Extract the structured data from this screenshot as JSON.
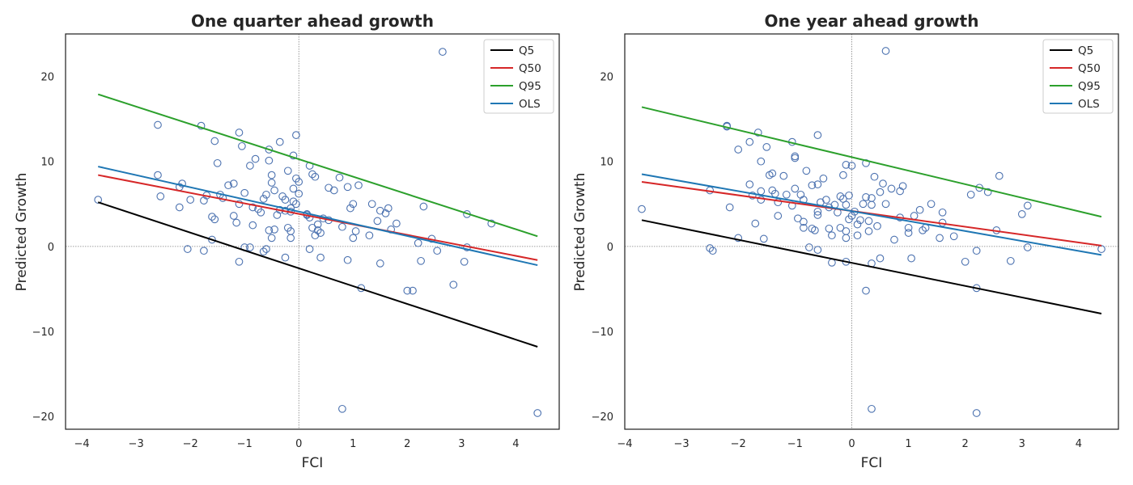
{
  "figure": {
    "colors": {
      "Q5": "#000000",
      "Q50": "#d62728",
      "Q95": "#2ca02c",
      "OLS": "#1f77b4",
      "points": "#4c72b0",
      "frame": "#262626",
      "refline": "#808080"
    }
  },
  "chart_data": [
    {
      "type": "scatter",
      "title": "One quarter ahead growth",
      "xlabel": "FCI",
      "ylabel": "Predicted Growth",
      "xlim": [
        -4.3,
        4.8
      ],
      "ylim": [
        -21.5,
        25
      ],
      "xticks": [
        -4,
        -3,
        -2,
        -1,
        0,
        1,
        2,
        3,
        4
      ],
      "xtick_labels": [
        "−4",
        "−3",
        "−2",
        "−1",
        "0",
        "1",
        "2",
        "3",
        "4"
      ],
      "yticks": [
        -20,
        -10,
        0,
        10,
        20
      ],
      "ytick_labels": [
        "−20",
        "−10",
        "0",
        "10",
        "20"
      ],
      "grid": false,
      "reference_lines": {
        "x": 0,
        "y": 0,
        "style": "dotted"
      },
      "legend": {
        "position": "top-right",
        "entries": [
          "Q5",
          "Q50",
          "Q95",
          "OLS"
        ]
      },
      "series": [
        {
          "name": "Q5",
          "kind": "line",
          "x": [
            -3.7,
            4.4
          ],
          "y": [
            5.2,
            -11.8
          ]
        },
        {
          "name": "Q50",
          "kind": "line",
          "x": [
            -3.7,
            4.4
          ],
          "y": [
            8.4,
            -1.6
          ]
        },
        {
          "name": "Q95",
          "kind": "line",
          "x": [
            -3.7,
            4.4
          ],
          "y": [
            17.9,
            1.2
          ]
        },
        {
          "name": "OLS",
          "kind": "line",
          "x": [
            -3.7,
            4.4
          ],
          "y": [
            9.4,
            -2.2
          ]
        }
      ],
      "points": [
        [
          -3.7,
          5.5
        ],
        [
          -2.6,
          14.3
        ],
        [
          -2.6,
          8.4
        ],
        [
          -2.55,
          5.9
        ],
        [
          -2.2,
          7.0
        ],
        [
          -2.15,
          7.4
        ],
        [
          -2.2,
          4.6
        ],
        [
          -2.0,
          5.5
        ],
        [
          -2.05,
          -0.3
        ],
        [
          -1.8,
          14.2
        ],
        [
          -1.75,
          5.4
        ],
        [
          -1.7,
          6.0
        ],
        [
          -1.75,
          -0.5
        ],
        [
          -1.6,
          3.5
        ],
        [
          -1.55,
          3.2
        ],
        [
          -1.55,
          12.4
        ],
        [
          -1.5,
          9.8
        ],
        [
          -1.45,
          6.1
        ],
        [
          -1.4,
          5.7
        ],
        [
          -1.6,
          0.8
        ],
        [
          -1.3,
          7.2
        ],
        [
          -1.2,
          7.4
        ],
        [
          -1.2,
          3.6
        ],
        [
          -1.1,
          13.4
        ],
        [
          -1.1,
          5.0
        ],
        [
          -1.05,
          11.8
        ],
        [
          -1.0,
          6.3
        ],
        [
          -1.0,
          -0.1
        ],
        [
          -1.1,
          -1.8
        ],
        [
          -1.15,
          2.8
        ],
        [
          -0.9,
          9.5
        ],
        [
          -0.85,
          4.6
        ],
        [
          -0.8,
          10.3
        ],
        [
          -0.85,
          2.5
        ],
        [
          -0.75,
          4.4
        ],
        [
          -0.7,
          4.0
        ],
        [
          -0.65,
          5.6
        ],
        [
          -0.6,
          6.1
        ],
        [
          -0.55,
          11.4
        ],
        [
          -0.5,
          8.4
        ],
        [
          -0.55,
          10.1
        ],
        [
          -0.5,
          7.5
        ],
        [
          -0.45,
          6.6
        ],
        [
          -0.4,
          3.7
        ],
        [
          -0.45,
          2.0
        ],
        [
          -0.55,
          1.9
        ],
        [
          -0.5,
          1.0
        ],
        [
          -0.35,
          12.3
        ],
        [
          -0.3,
          5.9
        ],
        [
          -0.25,
          5.5
        ],
        [
          -0.2,
          8.9
        ],
        [
          -0.15,
          4.5
        ],
        [
          -0.1,
          6.8
        ],
        [
          -0.05,
          13.1
        ],
        [
          -0.05,
          8.0
        ],
        [
          -0.1,
          10.7
        ],
        [
          0.0,
          6.2
        ],
        [
          0.0,
          7.6
        ],
        [
          -0.1,
          5.3
        ],
        [
          -0.05,
          5.0
        ],
        [
          -0.15,
          4.1
        ],
        [
          -0.2,
          2.2
        ],
        [
          -0.15,
          1.8
        ],
        [
          -0.15,
          1.0
        ],
        [
          -0.25,
          4.2
        ],
        [
          -0.9,
          -0.1
        ],
        [
          -0.6,
          -0.3
        ],
        [
          -0.65,
          -0.6
        ],
        [
          -0.25,
          -1.3
        ],
        [
          0.2,
          9.5
        ],
        [
          0.25,
          8.5
        ],
        [
          0.3,
          8.2
        ],
        [
          0.15,
          3.8
        ],
        [
          0.2,
          3.4
        ],
        [
          0.25,
          2.2
        ],
        [
          0.3,
          1.3
        ],
        [
          0.35,
          2.6
        ],
        [
          0.35,
          1.9
        ],
        [
          0.4,
          1.6
        ],
        [
          0.45,
          3.3
        ],
        [
          0.55,
          3.1
        ],
        [
          0.55,
          6.9
        ],
        [
          0.65,
          6.6
        ],
        [
          0.75,
          8.1
        ],
        [
          0.8,
          2.3
        ],
        [
          0.2,
          -0.3
        ],
        [
          0.4,
          -1.3
        ],
        [
          0.9,
          7.0
        ],
        [
          0.95,
          4.5
        ],
        [
          1.0,
          5.0
        ],
        [
          1.05,
          1.8
        ],
        [
          1.1,
          7.2
        ],
        [
          1.0,
          1.0
        ],
        [
          0.9,
          -1.6
        ],
        [
          0.8,
          -19.1
        ],
        [
          1.15,
          -4.9
        ],
        [
          1.3,
          1.3
        ],
        [
          1.35,
          5.0
        ],
        [
          1.45,
          3.0
        ],
        [
          1.5,
          4.2
        ],
        [
          1.5,
          -2.0
        ],
        [
          1.6,
          3.9
        ],
        [
          1.65,
          4.5
        ],
        [
          1.7,
          2.0
        ],
        [
          1.8,
          2.7
        ],
        [
          2.0,
          -5.2
        ],
        [
          2.1,
          -5.2
        ],
        [
          2.2,
          0.4
        ],
        [
          2.25,
          -1.7
        ],
        [
          2.3,
          4.7
        ],
        [
          2.45,
          0.9
        ],
        [
          2.55,
          -0.5
        ],
        [
          2.65,
          22.9
        ],
        [
          2.85,
          -4.5
        ],
        [
          3.05,
          -1.8
        ],
        [
          3.1,
          3.8
        ],
        [
          3.1,
          -0.1
        ],
        [
          3.55,
          2.7
        ],
        [
          4.4,
          -19.6
        ],
        [
          0.15,
          3.7
        ],
        [
          -0.35,
          4.3
        ]
      ]
    },
    {
      "type": "scatter",
      "title": "One year ahead growth",
      "xlabel": "FCI",
      "ylabel": "Predicted Growth",
      "xlim": [
        -4.0,
        4.7
      ],
      "ylim": [
        -21.5,
        25
      ],
      "xticks": [
        -4,
        -3,
        -2,
        -1,
        0,
        1,
        2,
        3,
        4
      ],
      "xtick_labels": [
        "−4",
        "−3",
        "−2",
        "−1",
        "0",
        "1",
        "2",
        "3",
        "4"
      ],
      "yticks": [
        -20,
        -10,
        0,
        10,
        20
      ],
      "ytick_labels": [
        "−20",
        "−10",
        "0",
        "10",
        "20"
      ],
      "grid": false,
      "reference_lines": {
        "x": 0,
        "y": 0,
        "style": "dotted"
      },
      "legend": {
        "position": "top-right",
        "entries": [
          "Q5",
          "Q50",
          "Q95",
          "OLS"
        ]
      },
      "series": [
        {
          "name": "Q5",
          "kind": "line",
          "x": [
            -3.7,
            4.4
          ],
          "y": [
            3.1,
            -7.9
          ]
        },
        {
          "name": "Q50",
          "kind": "line",
          "x": [
            -3.7,
            4.4
          ],
          "y": [
            7.6,
            0.1
          ]
        },
        {
          "name": "Q95",
          "kind": "line",
          "x": [
            -3.7,
            4.4
          ],
          "y": [
            16.4,
            3.5
          ]
        },
        {
          "name": "OLS",
          "kind": "line",
          "x": [
            -3.7,
            4.4
          ],
          "y": [
            8.5,
            -1.0
          ]
        }
      ],
      "points": [
        [
          -3.7,
          4.4
        ],
        [
          -2.5,
          6.6
        ],
        [
          -2.5,
          -0.2
        ],
        [
          -2.45,
          -0.5
        ],
        [
          -2.2,
          14.2
        ],
        [
          -2.2,
          14.1
        ],
        [
          -2.15,
          4.6
        ],
        [
          -2.0,
          11.4
        ],
        [
          -2.0,
          1.0
        ],
        [
          -1.8,
          12.3
        ],
        [
          -1.8,
          7.3
        ],
        [
          -1.75,
          6.0
        ],
        [
          -1.7,
          2.7
        ],
        [
          -1.65,
          13.4
        ],
        [
          -1.6,
          10.0
        ],
        [
          -1.6,
          5.5
        ],
        [
          -1.6,
          6.5
        ],
        [
          -1.55,
          0.9
        ],
        [
          -1.5,
          11.7
        ],
        [
          -1.45,
          8.4
        ],
        [
          -1.4,
          8.6
        ],
        [
          -1.4,
          6.6
        ],
        [
          -1.35,
          6.2
        ],
        [
          -1.3,
          5.2
        ],
        [
          -1.3,
          3.6
        ],
        [
          -1.2,
          8.3
        ],
        [
          -1.15,
          6.1
        ],
        [
          -1.05,
          12.3
        ],
        [
          -1.0,
          10.4
        ],
        [
          -1.0,
          10.6
        ],
        [
          -1.05,
          4.8
        ],
        [
          -1.0,
          6.8
        ],
        [
          -0.95,
          3.3
        ],
        [
          -0.9,
          6.1
        ],
        [
          -0.85,
          2.2
        ],
        [
          -0.85,
          2.9
        ],
        [
          -0.85,
          5.5
        ],
        [
          -0.8,
          8.9
        ],
        [
          -0.75,
          -0.1
        ],
        [
          -0.7,
          7.2
        ],
        [
          -0.7,
          2.1
        ],
        [
          -0.65,
          1.9
        ],
        [
          -0.6,
          13.1
        ],
        [
          -0.6,
          7.3
        ],
        [
          -0.6,
          4.1
        ],
        [
          -0.6,
          3.7
        ],
        [
          -0.55,
          5.2
        ],
        [
          -0.5,
          8.0
        ],
        [
          -0.45,
          5.5
        ],
        [
          -0.4,
          4.6
        ],
        [
          -0.4,
          2.1
        ],
        [
          -0.35,
          1.3
        ],
        [
          -0.3,
          4.9
        ],
        [
          -0.25,
          4.0
        ],
        [
          -0.2,
          5.9
        ],
        [
          -0.2,
          2.2
        ],
        [
          -0.15,
          8.4
        ],
        [
          -0.15,
          5.6
        ],
        [
          -0.1,
          9.6
        ],
        [
          -0.1,
          4.9
        ],
        [
          -0.1,
          1.8
        ],
        [
          -0.1,
          1.0
        ],
        [
          -0.05,
          3.2
        ],
        [
          -0.05,
          6.0
        ],
        [
          0.0,
          9.5
        ],
        [
          0.0,
          3.6
        ],
        [
          0.05,
          4.1
        ],
        [
          0.1,
          2.6
        ],
        [
          0.1,
          1.3
        ],
        [
          0.15,
          3.1
        ],
        [
          0.2,
          5.0
        ],
        [
          0.25,
          9.8
        ],
        [
          0.25,
          5.8
        ],
        [
          0.3,
          3.0
        ],
        [
          0.3,
          1.8
        ],
        [
          0.35,
          5.7
        ],
        [
          0.35,
          4.9
        ],
        [
          0.4,
          8.2
        ],
        [
          0.45,
          2.4
        ],
        [
          0.5,
          6.4
        ],
        [
          0.55,
          7.4
        ],
        [
          0.6,
          5.0
        ],
        [
          0.7,
          6.8
        ],
        [
          0.75,
          0.8
        ],
        [
          0.85,
          3.4
        ],
        [
          0.85,
          6.5
        ],
        [
          0.9,
          7.1
        ],
        [
          1.0,
          2.2
        ],
        [
          1.0,
          1.6
        ],
        [
          1.1,
          3.6
        ],
        [
          1.2,
          4.3
        ],
        [
          1.25,
          1.9
        ],
        [
          1.3,
          2.2
        ],
        [
          1.4,
          5.0
        ],
        [
          1.55,
          1.0
        ],
        [
          1.6,
          4.0
        ],
        [
          1.6,
          2.8
        ],
        [
          1.8,
          1.2
        ],
        [
          2.0,
          -1.8
        ],
        [
          2.1,
          6.1
        ],
        [
          2.2,
          -0.5
        ],
        [
          2.25,
          6.9
        ],
        [
          2.4,
          6.4
        ],
        [
          2.55,
          1.9
        ],
        [
          2.6,
          8.3
        ],
        [
          2.8,
          -1.7
        ],
        [
          3.0,
          3.8
        ],
        [
          3.1,
          4.8
        ],
        [
          3.1,
          -0.1
        ],
        [
          4.4,
          -0.3
        ],
        [
          -0.35,
          -1.9
        ],
        [
          -0.1,
          -1.8
        ],
        [
          0.35,
          -2.0
        ],
        [
          0.25,
          -5.2
        ],
        [
          0.6,
          23.0
        ],
        [
          0.35,
          -19.1
        ],
        [
          2.2,
          -19.6
        ],
        [
          2.2,
          -4.9
        ],
        [
          1.05,
          -1.4
        ],
        [
          -0.6,
          -0.4
        ],
        [
          0.5,
          -1.4
        ]
      ]
    }
  ]
}
